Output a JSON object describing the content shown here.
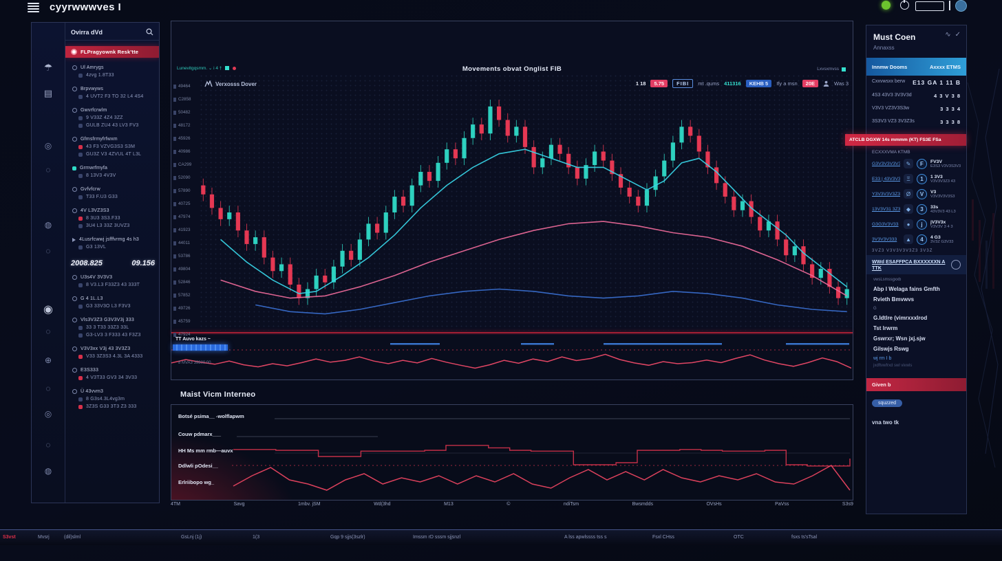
{
  "colors": {
    "accent_red": "#ee3a55",
    "accent_teal": "#2fd9c6",
    "accent_cyan": "#38d6e8",
    "accent_pink": "#ef6a9a",
    "accent_blue": "#3a6fd0",
    "alert_red": "#c2243c",
    "header_blue": "#15589f"
  },
  "topbar": {
    "logo": "cyyrwwwves I"
  },
  "icon_rail": {
    "icons": [
      {
        "name": "umbrella-icon",
        "glyph": "☂"
      },
      {
        "name": "ledger-icon",
        "glyph": "▤"
      },
      {
        "name": "dial-icon",
        "glyph": "◎"
      },
      {
        "name": "circle-icon",
        "glyph": "◌"
      },
      {
        "name": "gauge-icon",
        "glyph": "◍"
      },
      {
        "name": "circle-icon",
        "glyph": "◌"
      },
      {
        "name": "chat-icon",
        "glyph": "◉"
      },
      {
        "name": "circle-icon",
        "glyph": "◌"
      },
      {
        "name": "plus-icon",
        "glyph": "⊕"
      },
      {
        "name": "circle-icon",
        "glyph": "◌"
      },
      {
        "name": "dial-icon",
        "glyph": "◎"
      },
      {
        "name": "circle-icon",
        "glyph": "◌"
      },
      {
        "name": "gauge-icon",
        "glyph": "◍"
      }
    ]
  },
  "sidebar": {
    "search_title": "Ovirra dVd",
    "items_top": [
      {
        "text": "FLPragyownk Resk'tte",
        "icon": "pill",
        "style": "active"
      },
      {
        "text": "Ul Amrygs",
        "icon": "ring",
        "style": "lead"
      },
      {
        "text": "4zvg 1.8T33",
        "icon": "dot",
        "style": "sub"
      },
      {
        "text": "Brpvwyws",
        "icon": "ring",
        "style": "lead"
      },
      {
        "text": "4 UVT2  F3 TO 32 L4 4S4",
        "icon": "dot",
        "style": "sub"
      },
      {
        "text": "Gwvrfcrwlm",
        "icon": "ring",
        "style": "lead"
      },
      {
        "text": "9 V33Z  4Z4 3ZZ",
        "icon": "dot",
        "style": "sub"
      },
      {
        "text": "GULB ZU4 43 LV3 FV3",
        "icon": "dot",
        "style": "sub"
      },
      {
        "text": "Gfmsfrmyfrfwxm",
        "icon": "ring",
        "style": "lead"
      },
      {
        "text": "43 F3 VZVG3S3 S3M",
        "icon": "red",
        "style": "sub"
      },
      {
        "text": "GU3Z V3 4ZVUL 4T L3L",
        "icon": "dot",
        "style": "sub"
      },
      {
        "text": "Grmwrfmyfa",
        "icon": "teal",
        "style": "lead"
      },
      {
        "text": "8 13V3  4V3V",
        "icon": "dot",
        "style": "sub"
      },
      {
        "text": "Gvfvfcrw",
        "icon": "ring",
        "style": "lead"
      },
      {
        "text": "T33 F.U3 G33",
        "icon": "dot",
        "style": "sub"
      },
      {
        "text": "4V L3VZ3S3",
        "icon": "ring",
        "style": "lead"
      },
      {
        "text": "8 3U3 3S3.F33",
        "icon": "red",
        "style": "sub"
      },
      {
        "text": "3U4 L3 33Z 3UVZ3",
        "icon": "dot",
        "style": "sub"
      },
      {
        "text": "4Lusrfcwwj jsfffvrmg 4s h3",
        "icon": "arrow",
        "style": "lead"
      },
      {
        "text": "G3 13VL",
        "icon": "dot",
        "style": "sub"
      }
    ],
    "price_row": {
      "value": "2008.825",
      "change": "09.156"
    },
    "items_bottom": [
      {
        "text": "U3s4V 3V3V3",
        "icon": "ring",
        "style": "lead"
      },
      {
        "text": "8 V3.L3 F33Z3 43 333T",
        "icon": "dot",
        "style": "sub"
      },
      {
        "text": "G 4 1L.L3",
        "icon": "ring",
        "style": "lead"
      },
      {
        "text": "G3 33V3O L3 F3V3",
        "icon": "dot",
        "style": "sub"
      },
      {
        "text": "Vls3V3Z3 G3V3V3j 333",
        "icon": "ring",
        "style": "lead"
      },
      {
        "text": "33 3 T33 33Z3 33L",
        "icon": "dot",
        "style": "sub"
      },
      {
        "text": "G3-LV3 3 F333 43 F3Z3",
        "icon": "dot",
        "style": "sub"
      },
      {
        "text": "V3V3xx V3j  43 3V3Z3",
        "icon": "ring",
        "style": "lead"
      },
      {
        "text": "V33 3Z3S3 4.3L 3A 4333",
        "icon": "red",
        "style": "sub"
      },
      {
        "text": "E3S333",
        "icon": "ring",
        "style": "lead"
      },
      {
        "text": "4 V3T33 GV3 34 3V33",
        "icon": "red",
        "style": "sub"
      },
      {
        "text": "Ü 43vvm3",
        "icon": "ring",
        "style": "lead"
      },
      {
        "text": "8 G3s4.3L4vg3m",
        "icon": "dot",
        "style": "sub"
      },
      {
        "text": "3Z3S G33 3T3 Z3 333",
        "icon": "red",
        "style": "sub"
      }
    ]
  },
  "main": {
    "legend_small": "Lunevitgqsmm. ⌄   i 4 †",
    "legend_right": "Lxvsxmvss",
    "symbol": "Verxosss Dover",
    "title": "Movements obvat Onglist FIB",
    "toolbar": {
      "price": "1 18",
      "change": "5.75",
      "fib": "FIBI",
      "small1": "mt .qums",
      "teal_value": "411316",
      "kehb": "KEHB 5",
      "small2": "Ify a msn",
      "badge": "20E",
      "trader": "Was 3"
    },
    "osc_label": "TT Auvo kazs  ~",
    "osc_sub": "8 MVA3 39800:00"
  },
  "bottom": {
    "heading": "Maist Vicm Interneo",
    "rows": [
      "Botsé psima__  -wolflapwm",
      "Couw pdmarx___",
      "HH Ms mm rmb—auvx",
      "Ddlwli pOdesi__",
      "Erlriibopo wg_"
    ],
    "x_ticks": [
      "4TM",
      "Savg",
      "1mbv. jSM",
      "Wd(3hd",
      "M13",
      "©",
      "ndiTsm",
      "Bwsmdds",
      "OVsHs",
      "PaVss",
      "S3s9"
    ]
  },
  "right": {
    "title": "Must Coen",
    "subtitle": "Annaxss",
    "header_left": "Innmw Dooms",
    "header_right": "Axxxx ETMS",
    "stats": [
      {
        "label": "Cxxvwsxx berw",
        "value": "E13 GA 1 11 B"
      },
      {
        "label": "4S3 43V3 3V3V3d",
        "value": "4 3 V 3 8"
      },
      {
        "label": "V3V3 VZ3V3S3w",
        "value": "3 3 3 4"
      },
      {
        "label": "3S3V3 VZ3 3V3Z3s",
        "value": "3 3 3 8"
      }
    ],
    "alert": "ATCLB DGXW 14s mmmm (KT) FS3E FSa",
    "coins_label": "ECXXXVMA KTMB",
    "coins": [
      {
        "link": "G3V3V3V3V3—4",
        "mid_glyph": "✎",
        "name": "FV3V",
        "sub": "E3S3 V3V3S3V3"
      },
      {
        "link": "E33 | 43V3V3S3",
        "mid_glyph": "Ξ",
        "name": "1 3V3",
        "sub": "V3V3V3Z3 43"
      },
      {
        "link": "Y3V3V3V3Z33",
        "mid_glyph": "Ø",
        "name": "V3",
        "sub": "V3V3V3V3S3"
      },
      {
        "link": "13V3V31 3Z3",
        "mid_glyph": "◆",
        "name": "33s",
        "sub": "43V3V3 43 L3"
      },
      {
        "link": "G3G3V3V33",
        "mid_glyph": "●",
        "name": "jV3V3x",
        "sub": "V3V3V 3 4 3"
      },
      {
        "link": "3V3V3V333",
        "mid_glyph": "▲",
        "name": "4 G3",
        "sub": "3V3Z G3V33"
      }
    ],
    "note": "3VZ3   V3V3V3V3Z3   3V3Z",
    "highlight": "WWd ESAFFPCA BXXXXXXN A TTK",
    "lines": [
      {
        "text": "vwsLsmssgxxb",
        "cls": "tiny"
      },
      {
        "text": "Abp I Welaga fains Gmfth",
        "cls": "bold"
      },
      {
        "text": "Rvieth Bmvwvs",
        "cls": "bold"
      },
      {
        "text": "G",
        "cls": "tiny"
      },
      {
        "text": "G.ldtlre (vimrxxxlrod",
        "cls": "bold"
      },
      {
        "text": "Tst lrwrm",
        "cls": "bold"
      },
      {
        "text": "Gswrxr; Wsn jxj.sjw",
        "cls": "bold"
      },
      {
        "text": "Gilswjs Rswg",
        "cls": "bold"
      },
      {
        "text": "wj rm I b",
        "cls": "blue"
      },
      {
        "text": "jxdftvwfrxd swl vivwls",
        "cls": "faint"
      }
    ],
    "alert2": "Given b",
    "pill": "squzzed",
    "footer": "vna two tk"
  },
  "statusbar": {
    "items": [
      "S3vst",
      "Mvsrj",
      "(dil)slml",
      "GsLnj (1j)",
      "1(3",
      "Gqp 9 sjjs(3szlr)",
      "Imssm rD sssm sjjsnzl",
      "A lss apwlssss tss s",
      "Fsxl CHss",
      "OTC",
      "fsxs ts'sTsal"
    ]
  },
  "chart_data": [
    {
      "id": "main-candles",
      "type": "candlestick",
      "title": "Movements obvat Onglist FIB",
      "ylim": [
        0,
        100
      ],
      "up_color": "#2fd9c6",
      "down_color": "#ee3a55",
      "grid": true,
      "y_tick_labels": [
        "49464",
        "C2858",
        "50482",
        "48172",
        "45926",
        "40986",
        "CA299",
        "52090",
        "57890",
        "40725",
        "47974",
        "41923",
        "44011",
        "53786",
        "49804",
        "52846",
        "57852",
        "49726",
        "45759",
        "47924",
        "FT8979"
      ],
      "closes": [
        58,
        52,
        47,
        50,
        42,
        36,
        39,
        30,
        24,
        27,
        18,
        12,
        16,
        22,
        19,
        26,
        33,
        29,
        38,
        45,
        41,
        50,
        57,
        53,
        62,
        68,
        64,
        72,
        78,
        74,
        83,
        89,
        85,
        97,
        91,
        84,
        88,
        79,
        70,
        74,
        80,
        76,
        70,
        65,
        71,
        77,
        73,
        67,
        61,
        57,
        53,
        60,
        66,
        73,
        81,
        88,
        84,
        77,
        70,
        63,
        57,
        51,
        55,
        48,
        42,
        46,
        38,
        31,
        35,
        27,
        21,
        25,
        17,
        12,
        16
      ],
      "series": [
        {
          "name": "ma-cyan",
          "color": "#38d6e8",
          "points": [
            [
              2,
              38
            ],
            [
              5,
              28
            ],
            [
              8,
              20
            ],
            [
              11,
              14
            ],
            [
              13,
              15
            ],
            [
              16,
              22
            ],
            [
              19,
              30
            ],
            [
              22,
              40
            ],
            [
              25,
              52
            ],
            [
              28,
              62
            ],
            [
              31,
              70
            ],
            [
              34,
              76
            ],
            [
              37,
              78
            ],
            [
              40,
              74
            ],
            [
              43,
              70
            ],
            [
              46,
              70
            ],
            [
              49,
              64
            ],
            [
              51,
              60
            ],
            [
              53,
              64
            ],
            [
              55,
              72
            ],
            [
              57,
              74
            ],
            [
              59,
              68
            ],
            [
              61,
              60
            ],
            [
              63,
              52
            ],
            [
              65,
              46
            ],
            [
              67,
              40
            ],
            [
              69,
              32
            ],
            [
              71,
              26
            ],
            [
              73,
              20
            ],
            [
              74,
              17
            ]
          ]
        },
        {
          "name": "ma-pink",
          "color": "#ef6a9a",
          "points": [
            [
              2,
              20
            ],
            [
              6,
              15
            ],
            [
              10,
              12
            ],
            [
              14,
              13
            ],
            [
              18,
              17
            ],
            [
              22,
              22
            ],
            [
              26,
              28
            ],
            [
              30,
              33
            ],
            [
              34,
              38
            ],
            [
              38,
              42
            ],
            [
              42,
              45
            ],
            [
              46,
              46
            ],
            [
              50,
              44
            ],
            [
              54,
              41
            ],
            [
              58,
              39
            ],
            [
              62,
              35
            ],
            [
              66,
              29
            ],
            [
              70,
              22
            ],
            [
              74,
              13
            ]
          ]
        },
        {
          "name": "ma-blue",
          "color": "#3a6fd0",
          "points": [
            [
              6,
              9
            ],
            [
              10,
              6
            ],
            [
              14,
              5
            ],
            [
              18,
              7
            ],
            [
              22,
              10
            ],
            [
              26,
              13
            ],
            [
              30,
              15
            ],
            [
              34,
              16
            ],
            [
              38,
              15
            ],
            [
              42,
              13
            ],
            [
              46,
              12
            ],
            [
              50,
              13
            ],
            [
              54,
              15
            ],
            [
              58,
              14
            ],
            [
              62,
              12
            ],
            [
              66,
              9
            ],
            [
              70,
              7
            ],
            [
              74,
              6
            ]
          ]
        }
      ]
    },
    {
      "id": "oscillator",
      "type": "line",
      "color": "#ee4a68",
      "ylim": [
        0,
        100
      ],
      "values": [
        45,
        58,
        48,
        40,
        52,
        38,
        30,
        42,
        34,
        46,
        60,
        48,
        55,
        68,
        52,
        42,
        55,
        45,
        62,
        48,
        36,
        25,
        38,
        55,
        44,
        60,
        50,
        68,
        54,
        62,
        78,
        58,
        45,
        36,
        50,
        42,
        46,
        56,
        46,
        62,
        76,
        56,
        42,
        32,
        46,
        64,
        50,
        25
      ],
      "dash_segments": [
        [
          318,
          390
        ],
        [
          508,
          556
        ],
        [
          628,
          800
        ],
        [
          893,
          985
        ]
      ],
      "baseline_dotted": true
    },
    {
      "id": "flow-step",
      "type": "step",
      "color": "#d8344e",
      "ylim": [
        0,
        100
      ],
      "values": [
        62,
        62,
        60,
        60,
        45,
        45,
        58,
        58,
        58,
        60,
        72,
        72,
        66,
        60,
        58,
        58,
        25,
        25,
        30,
        60,
        60,
        62,
        60,
        58,
        58,
        60,
        25,
        22,
        22,
        40
      ]
    },
    {
      "id": "flow-zigzag",
      "type": "line",
      "color": "#e84560",
      "ylim": [
        0,
        100
      ],
      "values": [
        30,
        55,
        75,
        45,
        35,
        20,
        45,
        60,
        35,
        50,
        40,
        55,
        35,
        55,
        40,
        60,
        35,
        25,
        50,
        70,
        45,
        65,
        45,
        70,
        50,
        40,
        55,
        45,
        60,
        40,
        35,
        55,
        80,
        20
      ]
    }
  ]
}
